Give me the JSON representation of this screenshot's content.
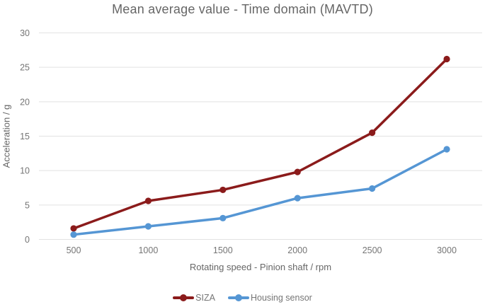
{
  "title": "Mean average value - Time domain (MAVTD)",
  "chart_data": {
    "type": "line",
    "title": "Mean average value - Time domain (MAVTD)",
    "xlabel": "Rotating speed - Pinion shaft / rpm",
    "ylabel": "Acceleration / g",
    "x": [
      500,
      1000,
      1500,
      2000,
      2500,
      3000
    ],
    "x_tick_labels": [
      "500",
      "1000",
      "1500",
      "2000",
      "2500",
      "3000"
    ],
    "series": [
      {
        "name": "SIZA",
        "color": "#8B1B1B",
        "values": [
          1.6,
          5.6,
          7.2,
          9.8,
          15.5,
          26.2
        ]
      },
      {
        "name": "Housing sensor",
        "color": "#5596D4",
        "values": [
          0.7,
          1.9,
          3.1,
          6.0,
          7.4,
          13.1
        ]
      }
    ],
    "ylim": [
      0,
      30
    ],
    "y_ticks": [
      0,
      5,
      10,
      15,
      20,
      25,
      30
    ],
    "grid": "horizontal",
    "legend_position": "bottom",
    "colors": {
      "grid_line": "#E2E2E2",
      "tick_label": "#757575",
      "axis_title": "#666666",
      "title": "#666666",
      "background": "#ffffff"
    }
  }
}
